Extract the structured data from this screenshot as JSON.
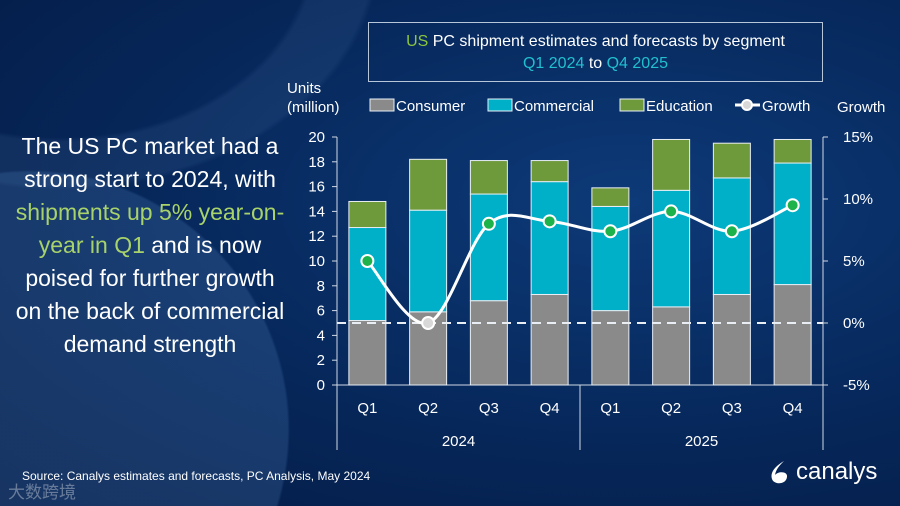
{
  "headline": {
    "part1": "The US PC market had a strong start to 2024, with ",
    "highlight": "shipments up 5% year-on-year in Q1",
    "part2": " and is now poised for further growth on the back of commercial demand strength"
  },
  "title": {
    "line1_a": "US",
    "line1_b": " PC shipment estimates and forecasts by segment",
    "line2_a": "Q1 2024",
    "line2_b": " to ",
    "line2_c": "Q4 2025"
  },
  "source": "Source:  Canalys estimates and forecasts, PC Analysis, May 2024",
  "logo": "canalys",
  "watermark": "大数跨境",
  "colors": {
    "consumer": "#8a8a8a",
    "commercial": "#00b0c8",
    "education": "#6e9a3c",
    "growth_line": "#ffffff",
    "growth_marker": "#1db34a"
  },
  "chart_data": {
    "type": "bar",
    "stacked": true,
    "title": "US PC shipment estimates and forecasts by segment Q1 2024 to Q4 2025",
    "ylabel": "Units (million)",
    "ylabel_right": "Growth",
    "ylim": [
      0,
      20
    ],
    "yticks": [
      "0",
      "2",
      "4",
      "6",
      "8",
      "10",
      "12",
      "14",
      "16",
      "18",
      "20"
    ],
    "ylim_right": [
      -5,
      15
    ],
    "yticks_right": [
      "-5%",
      "0%",
      "5%",
      "10%",
      "15%"
    ],
    "categories": [
      "Q1",
      "Q2",
      "Q3",
      "Q4",
      "Q1",
      "Q2",
      "Q3",
      "Q4"
    ],
    "groups": [
      {
        "label": "2024",
        "span": [
          0,
          3
        ]
      },
      {
        "label": "2025",
        "span": [
          4,
          7
        ]
      }
    ],
    "series": [
      {
        "name": "Consumer",
        "values": [
          5.2,
          5.9,
          6.8,
          7.3,
          6.0,
          6.3,
          7.3,
          8.1
        ]
      },
      {
        "name": "Commercial",
        "values": [
          7.5,
          8.2,
          8.6,
          9.1,
          8.4,
          9.4,
          9.4,
          9.8
        ]
      },
      {
        "name": "Education",
        "values": [
          2.1,
          4.1,
          2.7,
          1.7,
          1.5,
          4.1,
          2.8,
          1.9
        ]
      },
      {
        "name": "Growth",
        "axis": "right",
        "type": "line",
        "values": [
          5.0,
          0.0,
          8.0,
          8.2,
          7.4,
          9.0,
          7.4,
          9.5
        ]
      }
    ],
    "legend": "top"
  }
}
